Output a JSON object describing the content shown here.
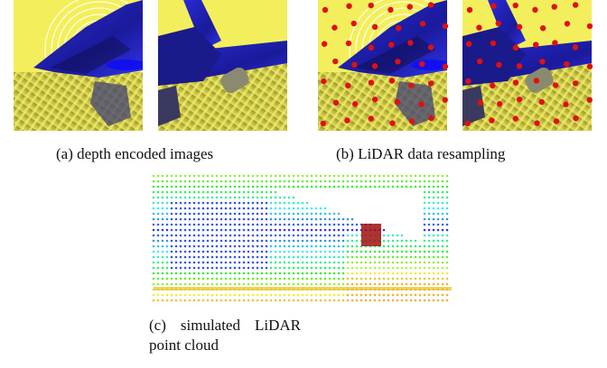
{
  "figure": {
    "subfigures": [
      {
        "caption": "(a) depth encoded images"
      },
      {
        "caption": "(b) LiDAR data resampling"
      },
      {
        "caption": "(c) simulated LiDAR point cloud"
      }
    ]
  }
}
